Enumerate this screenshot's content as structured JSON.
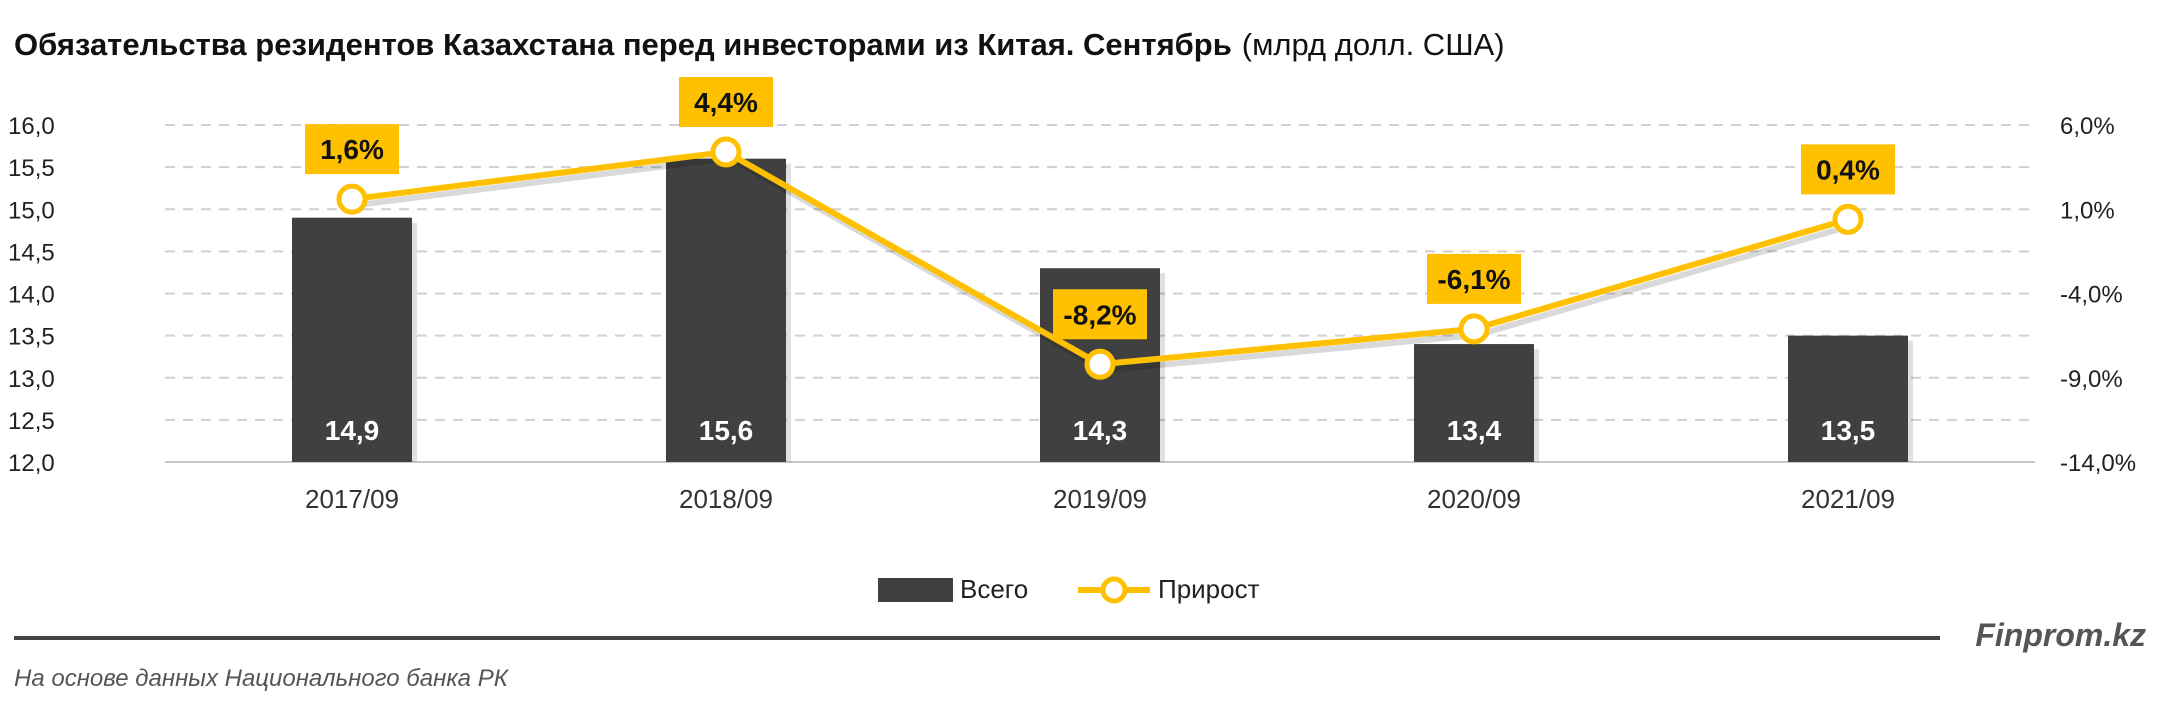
{
  "title_bold": "Обязательства резидентов Казахстана перед инвесторами из Китая. Сентябрь",
  "title_unit": "(млрд долл. США)",
  "brand": "Finprom.kz",
  "source": "На основе данных Национального банка РК",
  "chart_data": {
    "type": "bar+line",
    "categories": [
      "2017/09",
      "2018/09",
      "2019/09",
      "2020/09",
      "2021/09"
    ],
    "series": [
      {
        "name": "Всего",
        "type": "bar",
        "axis": "left",
        "values": [
          14.9,
          15.6,
          14.3,
          13.4,
          13.5
        ],
        "labels": [
          "14,9",
          "15,6",
          "14,3",
          "13,4",
          "13,5"
        ],
        "color": "#404040"
      },
      {
        "name": "Прирост",
        "type": "line",
        "axis": "right",
        "values": [
          1.6,
          4.4,
          -8.2,
          -6.1,
          0.4
        ],
        "labels": [
          "1,6%",
          "4,4%",
          "-8,2%",
          "-6,1%",
          "0,4%"
        ],
        "color": "#FFC000"
      }
    ],
    "left_axis": {
      "range": [
        12.0,
        16.0
      ],
      "ticks": [
        "12,0",
        "12,5",
        "13,0",
        "13,5",
        "14,0",
        "14,5",
        "15,0",
        "15,5",
        "16,0"
      ]
    },
    "right_axis": {
      "range": [
        -14.0,
        6.0
      ],
      "ticks": [
        "-14,0%",
        "-9,0%",
        "-4,0%",
        "1,0%",
        "6,0%"
      ]
    },
    "grid": true,
    "legend_placement": "bottom"
  }
}
